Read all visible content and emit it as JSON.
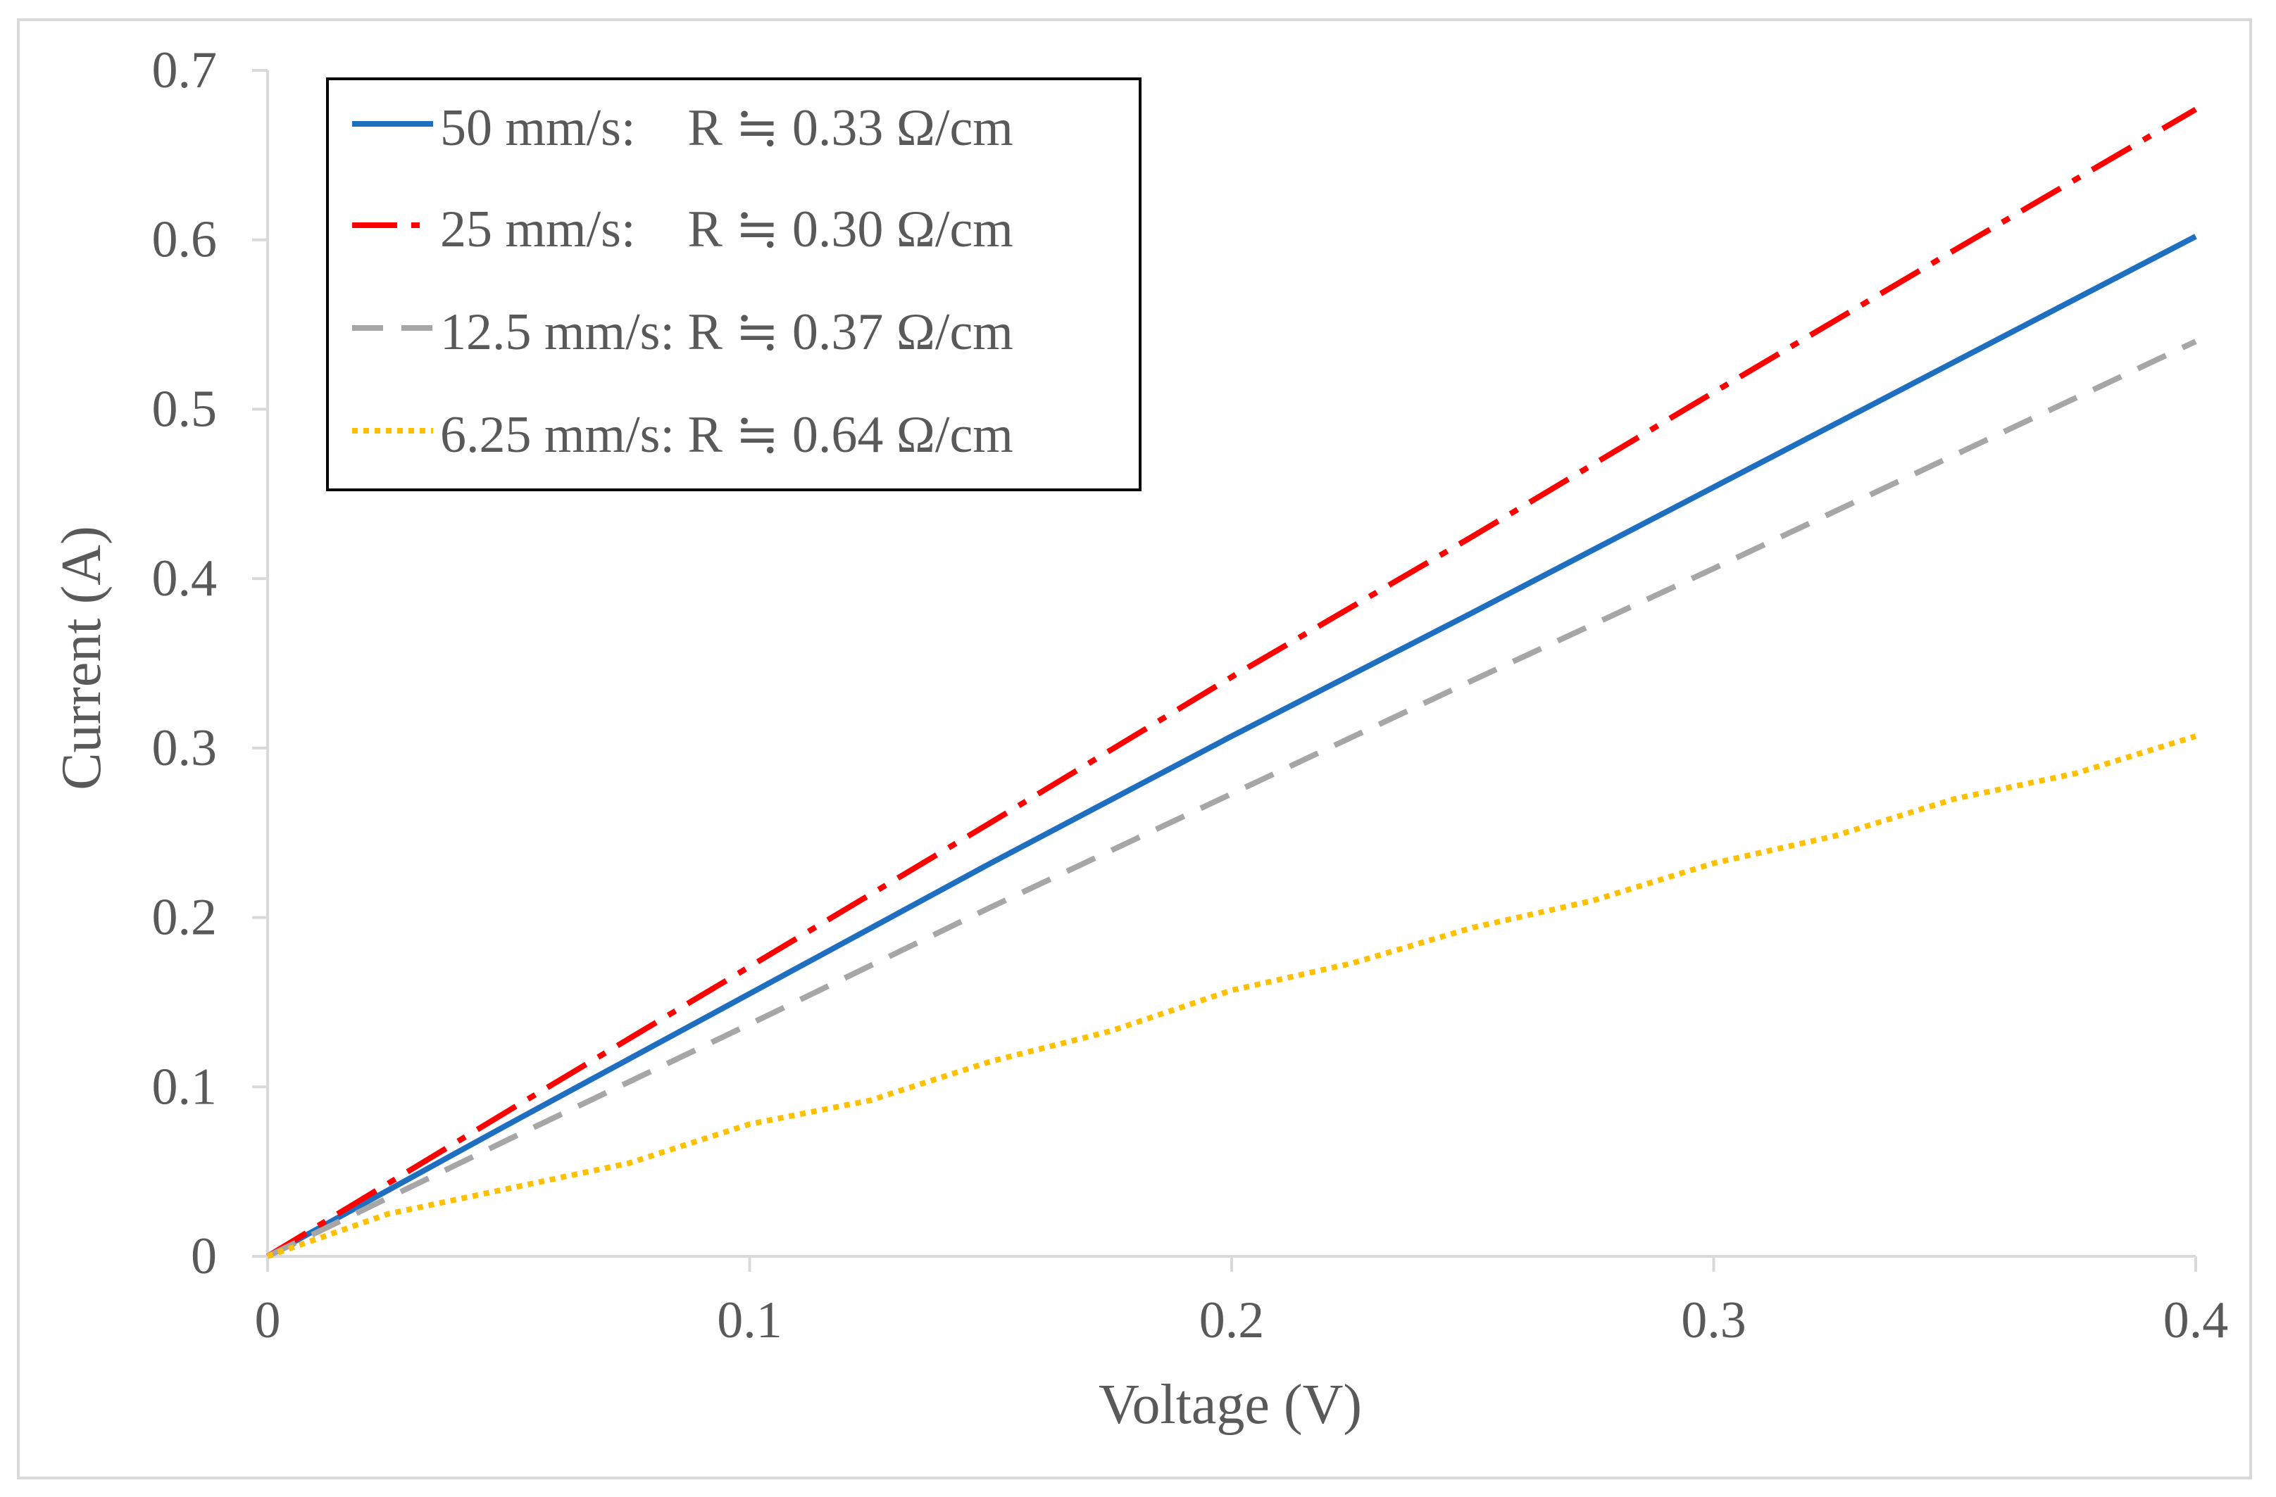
{
  "chart_data": {
    "type": "line",
    "title": "",
    "xlabel": "Voltage (V)",
    "ylabel": "Current (A)",
    "xlim": [
      0,
      0.4
    ],
    "ylim": [
      0,
      0.7
    ],
    "x_ticks": [
      0,
      0.1,
      0.2,
      0.3,
      0.4
    ],
    "x_tick_labels": [
      "0",
      "0.1",
      "0.2",
      "0.3",
      "0.4"
    ],
    "y_ticks": [
      0,
      0.1,
      0.2,
      0.3,
      0.4,
      0.5,
      0.6,
      0.7
    ],
    "y_tick_labels": [
      "0",
      "0.1",
      "0.2",
      "0.3",
      "0.4",
      "0.5",
      "0.6",
      "0.7"
    ],
    "grid": false,
    "legend_position": "top-left",
    "series": [
      {
        "name": "50 mm/s",
        "legend_label": "50 mm/s:    R ≒ 0.33 Ω/cm",
        "color": "#1f6fc0",
        "line_style": "solid",
        "x": [
          0,
          0.05,
          0.1,
          0.15,
          0.2,
          0.25,
          0.3,
          0.35,
          0.4
        ],
        "y": [
          0,
          0.078,
          0.155,
          0.232,
          0.307,
          0.38,
          0.454,
          0.528,
          0.602
        ]
      },
      {
        "name": "25 mm/s",
        "legend_label": "25 mm/s:    R ≒ 0.30 Ω/cm",
        "color": "#ff0000",
        "line_style": "dashdot",
        "x": [
          0,
          0.05,
          0.1,
          0.15,
          0.2,
          0.25,
          0.3,
          0.35,
          0.4
        ],
        "y": [
          0,
          0.086,
          0.171,
          0.256,
          0.342,
          0.425,
          0.51,
          0.594,
          0.677
        ]
      },
      {
        "name": "12.5 mm/s",
        "legend_label": "12.5 mm/s: R ≒ 0.37 Ω/cm",
        "color": "#a6a6a6",
        "line_style": "dashed",
        "x": [
          0,
          0.05,
          0.1,
          0.15,
          0.2,
          0.25,
          0.3,
          0.35,
          0.4
        ],
        "y": [
          0,
          0.069,
          0.137,
          0.206,
          0.273,
          0.34,
          0.406,
          0.473,
          0.54
        ]
      },
      {
        "name": "6.25 mm/s",
        "legend_label": "6.25 mm/s: R ≒ 0.64 Ω/cm",
        "color": "#ffc000",
        "line_style": "dotted",
        "x": [
          0,
          0.025,
          0.05,
          0.075,
          0.1,
          0.125,
          0.15,
          0.175,
          0.2,
          0.225,
          0.25,
          0.275,
          0.3,
          0.325,
          0.35,
          0.375,
          0.4
        ],
        "y": [
          0,
          0.025,
          0.04,
          0.055,
          0.078,
          0.092,
          0.115,
          0.133,
          0.157,
          0.173,
          0.194,
          0.21,
          0.232,
          0.248,
          0.27,
          0.285,
          0.307
        ]
      }
    ]
  }
}
